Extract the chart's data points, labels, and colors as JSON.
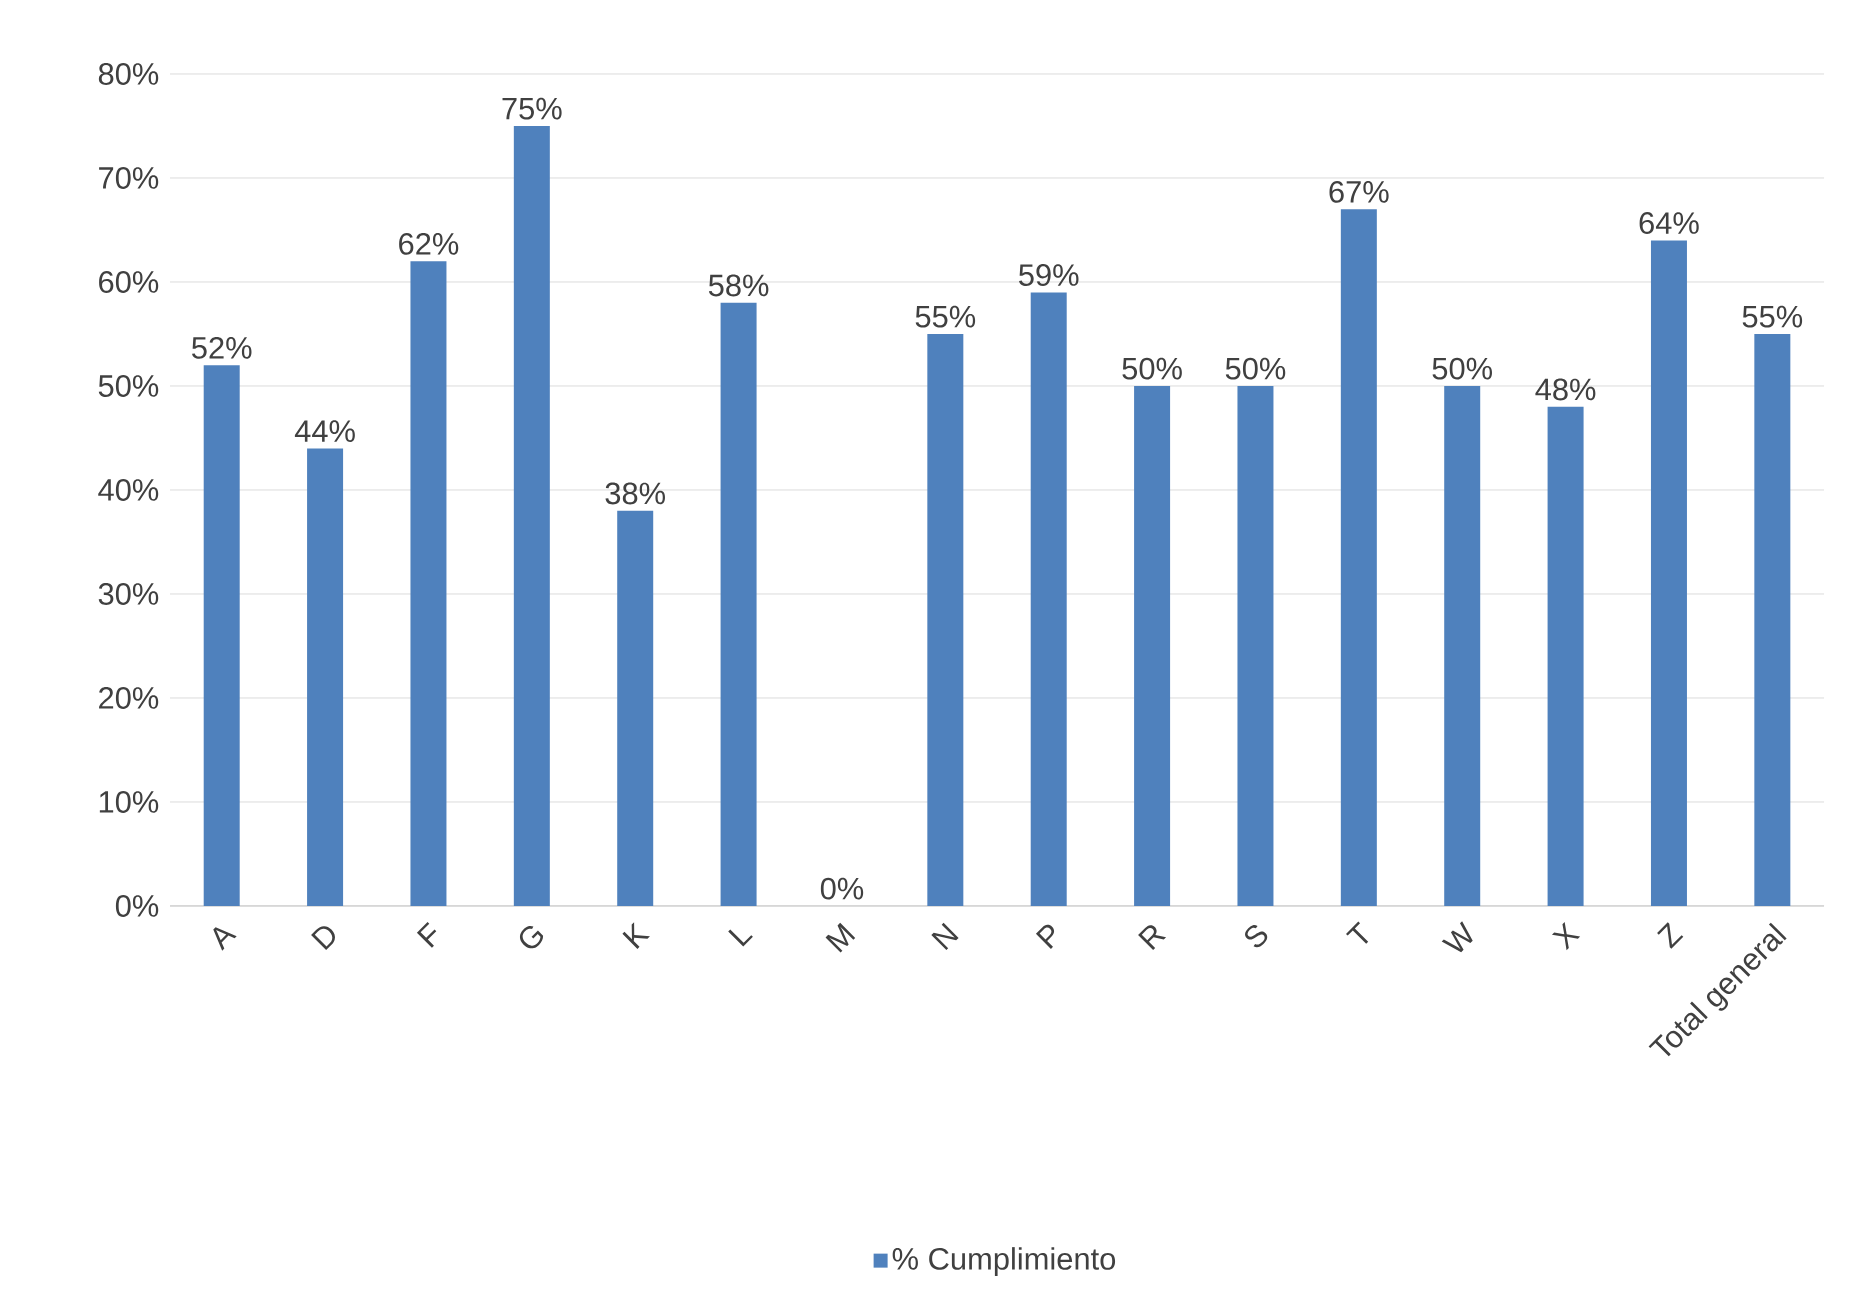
{
  "chart_data": {
    "type": "bar",
    "categories": [
      "A",
      "D",
      "F",
      "G",
      "K",
      "L",
      "M",
      "N",
      "P",
      "R",
      "S",
      "T",
      "W",
      "X",
      "Z",
      "Total general"
    ],
    "series": [
      {
        "name": "% Cumplimiento",
        "color": "#4f81bd",
        "values": [
          52,
          44,
          62,
          75,
          38,
          58,
          0,
          55,
          59,
          50,
          50,
          67,
          50,
          48,
          64,
          55
        ]
      }
    ],
    "value_labels": [
      "52%",
      "44%",
      "62%",
      "75%",
      "38%",
      "58%",
      "0%",
      "55%",
      "59%",
      "50%",
      "50%",
      "67%",
      "50%",
      "48%",
      "64%",
      "55%"
    ],
    "ylim": [
      0,
      80
    ],
    "yticks": [
      {
        "value": 0,
        "label": "0%"
      },
      {
        "value": 10,
        "label": "10%"
      },
      {
        "value": 20,
        "label": "20%"
      },
      {
        "value": 30,
        "label": "30%"
      },
      {
        "value": 40,
        "label": "40%"
      },
      {
        "value": 50,
        "label": "50%"
      },
      {
        "value": 60,
        "label": "60%"
      },
      {
        "value": 70,
        "label": "70%"
      },
      {
        "value": 80,
        "label": "80%"
      }
    ],
    "grid": "y",
    "legend": "bottom"
  }
}
